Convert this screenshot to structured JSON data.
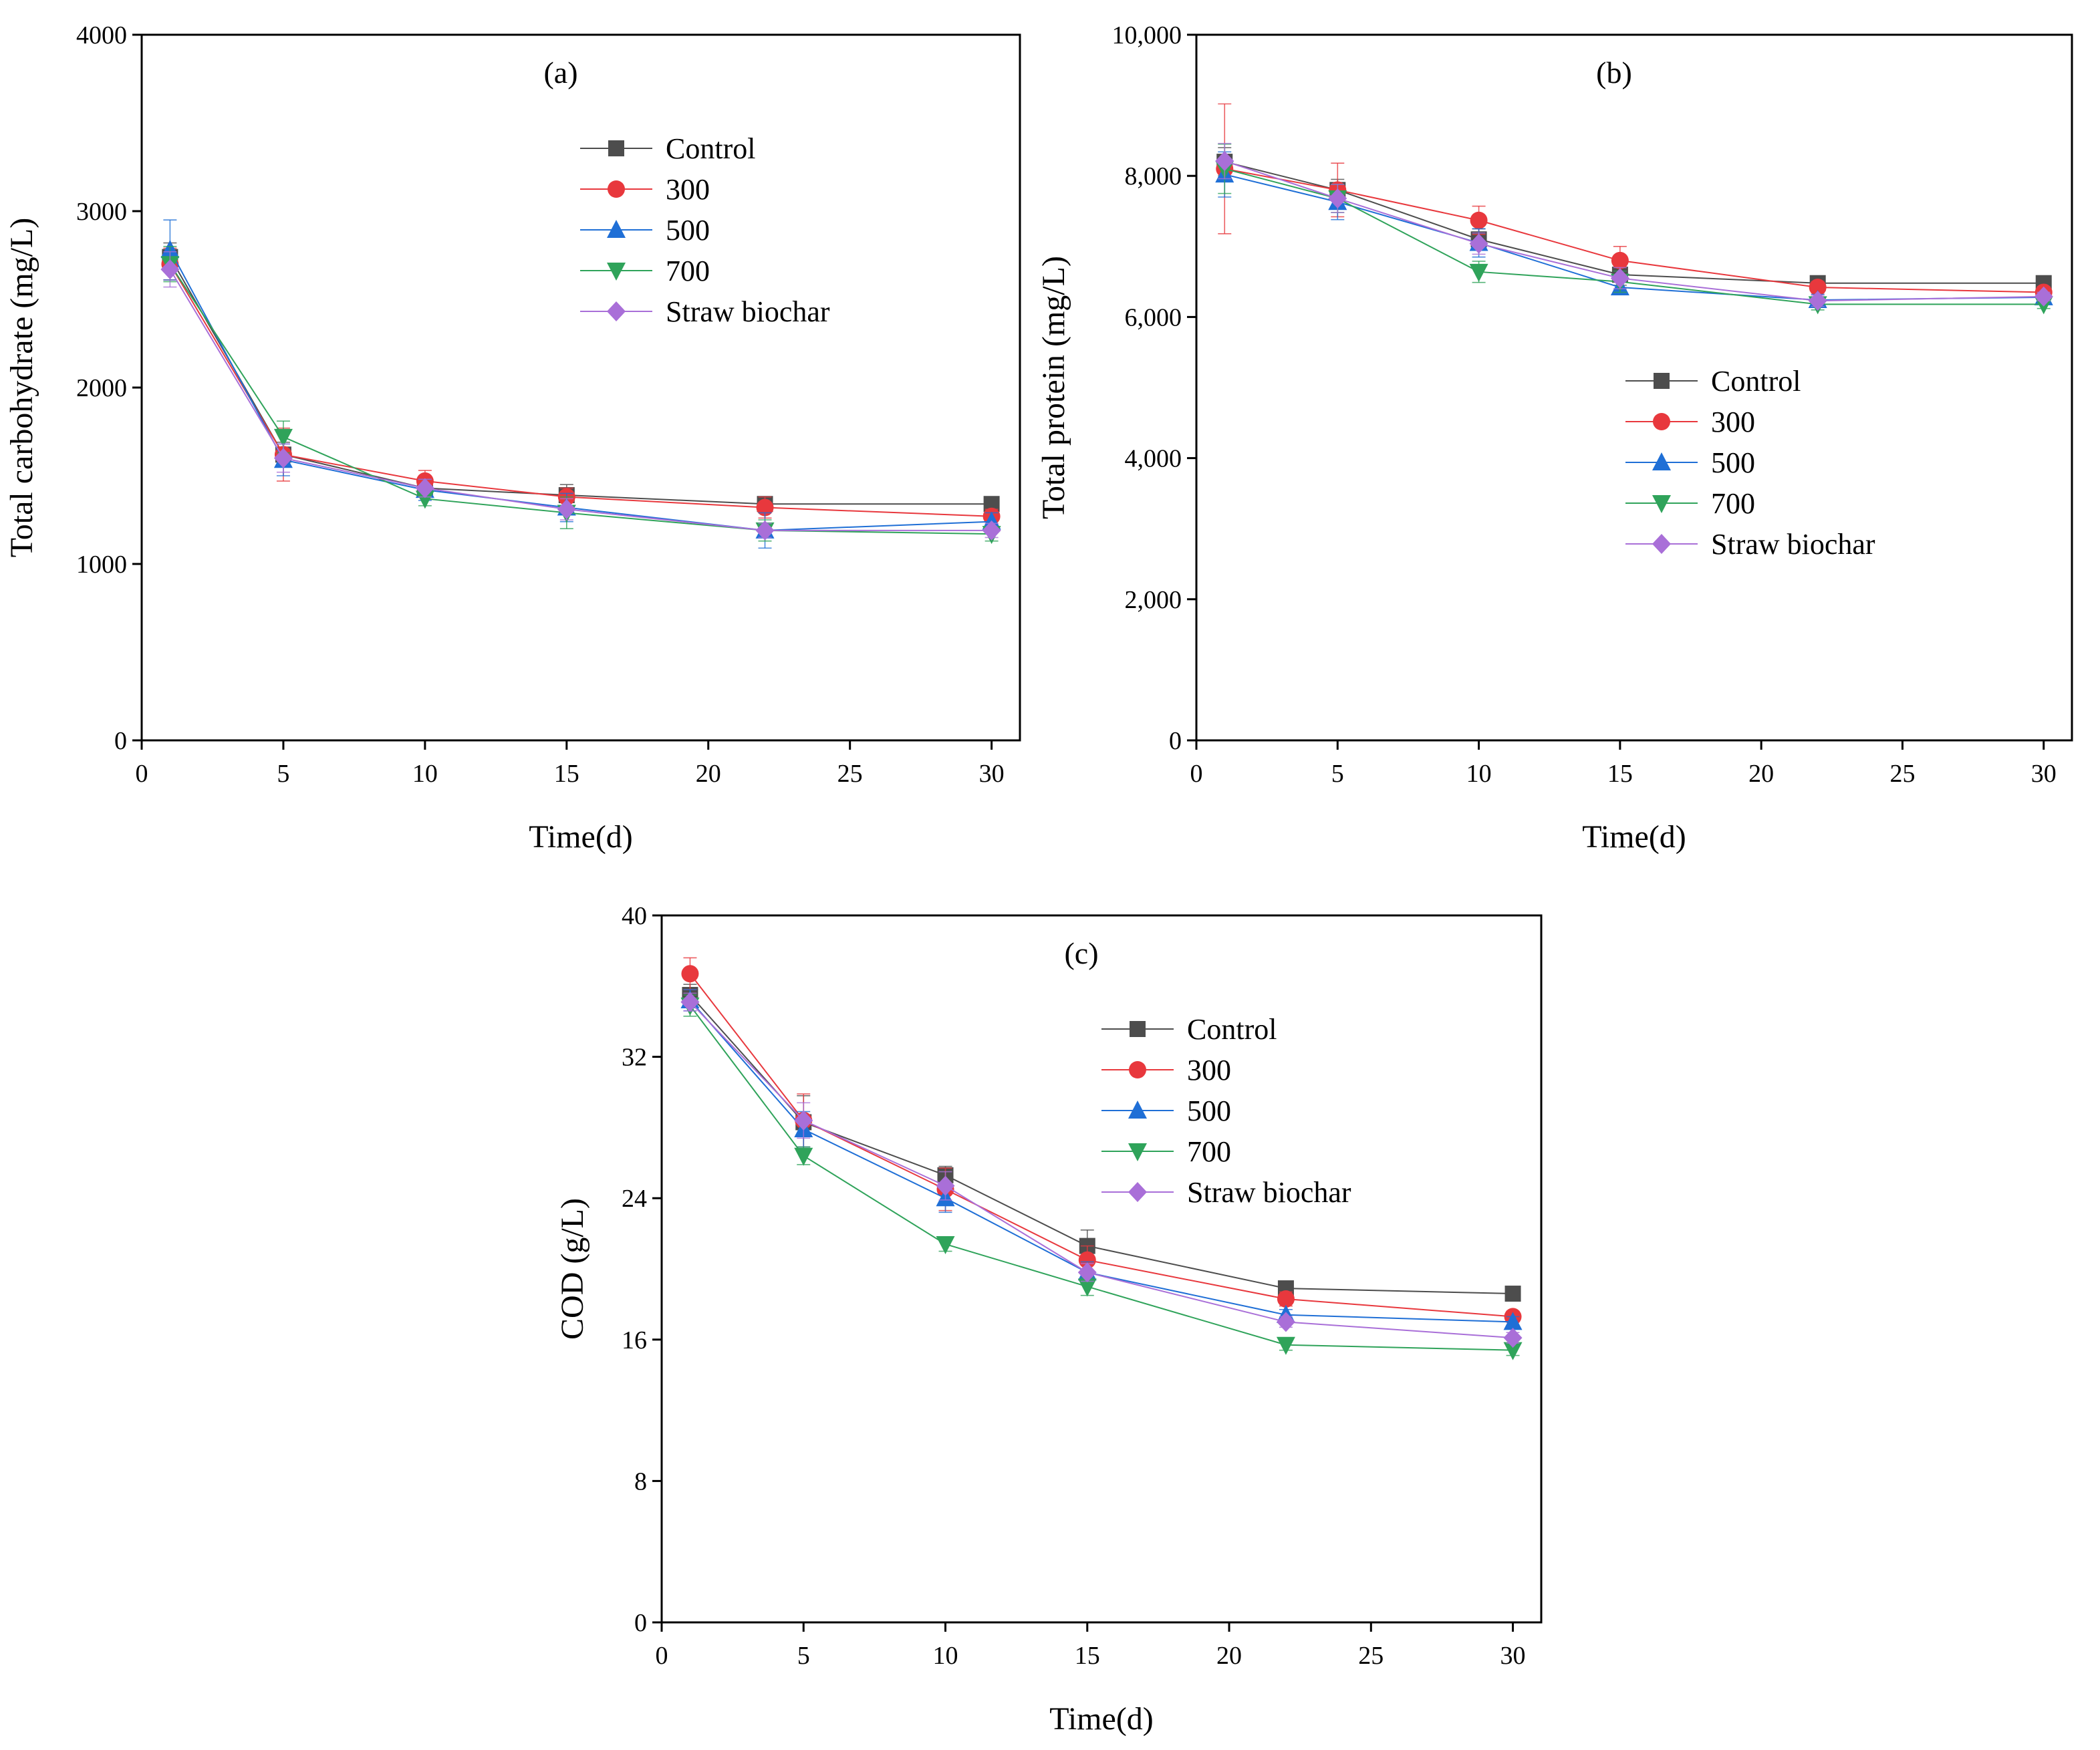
{
  "series_styles": [
    {
      "name": "Control",
      "color": "#4d4d4d",
      "marker": "square"
    },
    {
      "name": "300",
      "color": "#e8383d",
      "marker": "circle"
    },
    {
      "name": "500",
      "color": "#1f6fd6",
      "marker": "triangle-up"
    },
    {
      "name": "700",
      "color": "#2fa35a",
      "marker": "triangle-down"
    },
    {
      "name": "Straw biochar",
      "color": "#a96fd8",
      "marker": "diamond"
    }
  ],
  "chart_data": [
    {
      "type": "line",
      "panel": "(a)",
      "xlabel": "Time(d)",
      "ylabel": "Total carbohydrate (mg/L)",
      "xlim": [
        0,
        31
      ],
      "ylim": [
        0,
        4000
      ],
      "xticks": [
        0,
        5,
        10,
        15,
        20,
        25,
        30
      ],
      "xtick_labels": [
        "0",
        "5",
        "10",
        "15",
        "20",
        "25",
        "30"
      ],
      "yticks": [
        0,
        1000,
        2000,
        3000,
        4000
      ],
      "ytick_labels": [
        "0",
        "1000",
        "2000",
        "3000",
        "4000"
      ],
      "legend_position": "top-right",
      "x": [
        1,
        5,
        10,
        15,
        22,
        30
      ],
      "series": [
        {
          "name": "Control",
          "values": [
            2740,
            1620,
            1430,
            1390,
            1340,
            1340
          ],
          "errors": [
            80,
            70,
            50,
            60,
            40,
            30
          ]
        },
        {
          "name": "300",
          "values": [
            2700,
            1620,
            1470,
            1380,
            1320,
            1270
          ],
          "errors": [
            90,
            150,
            60,
            50,
            60,
            40
          ]
        },
        {
          "name": "500",
          "values": [
            2780,
            1590,
            1420,
            1320,
            1190,
            1240
          ],
          "errors": [
            170,
            90,
            60,
            80,
            100,
            50
          ]
        },
        {
          "name": "700",
          "values": [
            2700,
            1720,
            1370,
            1290,
            1190,
            1170
          ],
          "errors": [
            100,
            90,
            40,
            90,
            60,
            40
          ]
        },
        {
          "name": "Straw biochar",
          "values": [
            2670,
            1600,
            1430,
            1310,
            1190,
            1190
          ],
          "errors": [
            100,
            80,
            50,
            60,
            40,
            40
          ]
        }
      ]
    },
    {
      "type": "line",
      "panel": "(b)",
      "xlabel": "Time(d)",
      "ylabel": "Total protein (mg/L)",
      "xlim": [
        0,
        31
      ],
      "ylim": [
        0,
        10000
      ],
      "xticks": [
        0,
        5,
        10,
        15,
        20,
        25,
        30
      ],
      "xtick_labels": [
        "0",
        "5",
        "10",
        "15",
        "20",
        "25",
        "30"
      ],
      "yticks": [
        0,
        2000,
        4000,
        6000,
        8000,
        10000
      ],
      "ytick_labels": [
        "0",
        "2,000",
        "4,000",
        "6,000",
        "8,000",
        "10,000"
      ],
      "legend_position": "center-right",
      "x": [
        1,
        5,
        10,
        15,
        22,
        30
      ],
      "series": [
        {
          "name": "Control",
          "values": [
            8200,
            7800,
            7100,
            6600,
            6480,
            6480
          ],
          "errors": [
            200,
            150,
            150,
            150,
            60,
            50
          ]
        },
        {
          "name": "300",
          "values": [
            8100,
            7800,
            7370,
            6800,
            6420,
            6350
          ],
          "errors": [
            920,
            380,
            200,
            200,
            80,
            80
          ]
        },
        {
          "name": "500",
          "values": [
            8020,
            7630,
            7050,
            6420,
            6240,
            6280
          ],
          "errors": [
            320,
            250,
            200,
            100,
            80,
            50
          ]
        },
        {
          "name": "700",
          "values": [
            8100,
            7680,
            6640,
            6500,
            6180,
            6180
          ],
          "errors": [
            350,
            200,
            150,
            150,
            80,
            60
          ]
        },
        {
          "name": "Straw biochar",
          "values": [
            8210,
            7680,
            7040,
            6550,
            6230,
            6290
          ],
          "errors": [
            250,
            200,
            150,
            150,
            80,
            60
          ]
        }
      ]
    },
    {
      "type": "line",
      "panel": "(c)",
      "xlabel": "Time(d)",
      "ylabel": "COD (g/L)",
      "xlim": [
        0,
        31
      ],
      "ylim": [
        0,
        40
      ],
      "xticks": [
        0,
        5,
        10,
        15,
        20,
        25,
        30
      ],
      "xtick_labels": [
        "0",
        "5",
        "10",
        "15",
        "20",
        "25",
        "30"
      ],
      "yticks": [
        0,
        8,
        16,
        24,
        32,
        40
      ],
      "ytick_labels": [
        "0",
        "8",
        "16",
        "24",
        "32",
        "40"
      ],
      "legend_position": "top-right",
      "x": [
        1,
        5,
        10,
        15,
        22,
        30
      ],
      "series": [
        {
          "name": "Control",
          "values": [
            35.5,
            28.3,
            25.3,
            21.3,
            18.9,
            18.6
          ],
          "errors": [
            0.6,
            1.5,
            0.5,
            0.9,
            0.3,
            0.3
          ]
        },
        {
          "name": "300",
          "values": [
            36.7,
            28.4,
            24.5,
            20.5,
            18.3,
            17.3
          ],
          "errors": [
            0.9,
            1.5,
            1.2,
            0.8,
            0.4,
            0.3
          ]
        },
        {
          "name": "500",
          "values": [
            35.2,
            27.9,
            24.0,
            19.8,
            17.4,
            17.0
          ],
          "errors": [
            0.6,
            1.0,
            0.8,
            0.6,
            0.3,
            0.3
          ]
        },
        {
          "name": "700",
          "values": [
            34.9,
            26.4,
            21.4,
            19.0,
            15.7,
            15.4
          ],
          "errors": [
            0.6,
            0.5,
            0.4,
            0.5,
            0.3,
            0.3
          ]
        },
        {
          "name": "Straw biochar",
          "values": [
            35.1,
            28.4,
            24.7,
            19.8,
            17.0,
            16.1
          ],
          "errors": [
            0.5,
            1.0,
            0.8,
            0.5,
            0.3,
            0.3
          ]
        }
      ]
    }
  ]
}
